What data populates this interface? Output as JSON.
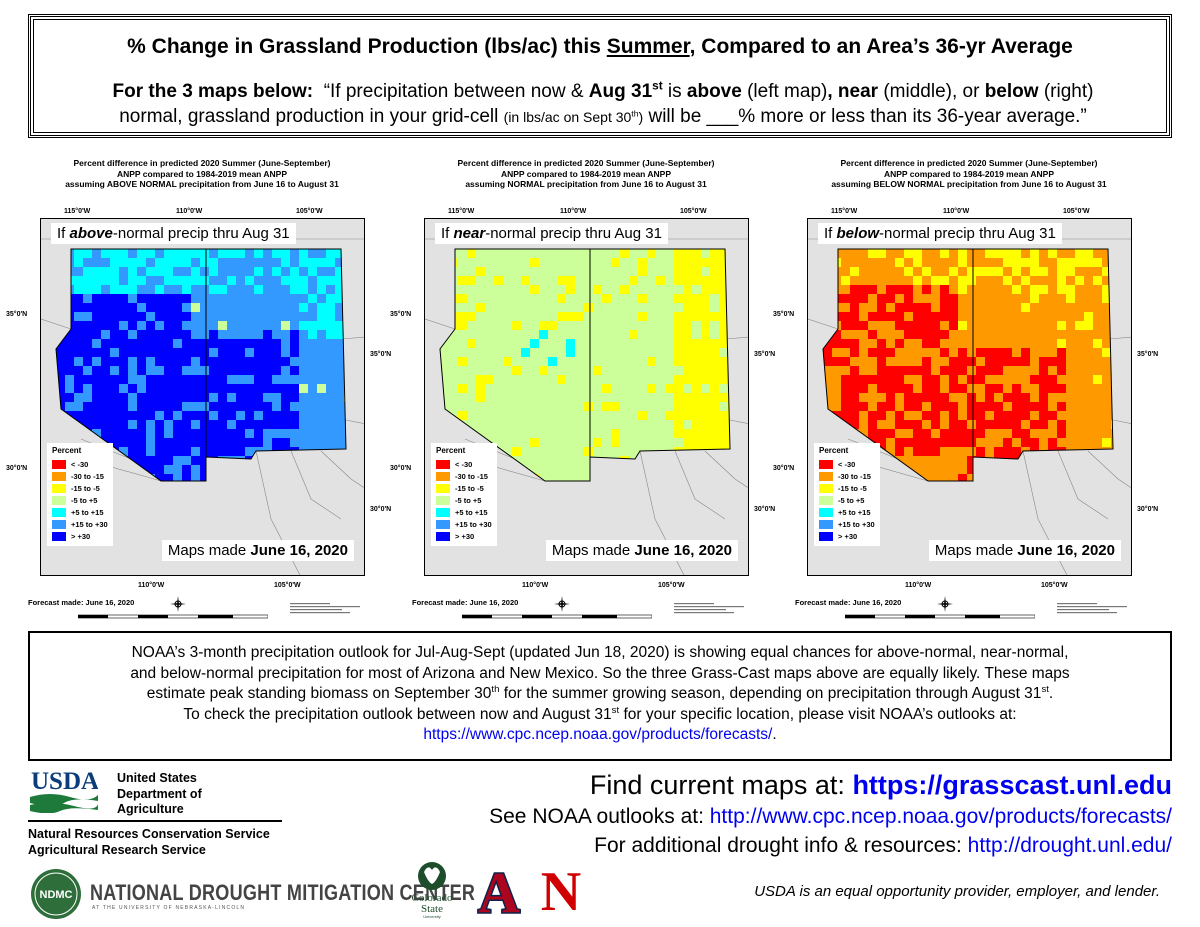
{
  "header": {
    "title_pre": "% Change in Grassland Production (lbs/ac) this ",
    "title_season": "Summer",
    "title_post": ", Compared to an Area’s 36-yr Average",
    "sub_lead": "For the 3 maps below:",
    "sub_q1": "“If precipitation between now & ",
    "sub_aug": "Aug 31",
    "sub_st": "st",
    "sub_is": " is ",
    "sub_above": "above",
    "sub_left": " (left map)",
    "sub_comma1": ", ",
    "sub_near": "near",
    "sub_middle": " (middle), or ",
    "sub_below": "below",
    "sub_right": " (right)",
    "sub_line2a": "normal, grassland production in your grid-cell ",
    "sub_small": "(in lbs/ac on Sept 30",
    "sub_small_th": "th",
    "sub_small_close": ")",
    "sub_line2b": " will be ___% more or less than its 36-year average.”"
  },
  "maps": [
    {
      "title_l1": "Percent difference in predicted 2020 Summer (June-September)",
      "title_l2": "ANPP compared to 1984-2019 mean ANPP",
      "title_l3": "assuming ABOVE NORMAL precipitation from June 16 to August 31",
      "caption_pre": "If ",
      "caption_em": "above",
      "caption_post": "-normal precip thru Aug 31",
      "made_pre": "Maps made ",
      "made_date": "June 16, 2020",
      "forecast": "Forecast made: June 16, 2020"
    },
    {
      "title_l1": "Percent difference in predicted 2020 Summer (June-September)",
      "title_l2": "ANPP compared to 1984-2019 mean ANPP",
      "title_l3": "assuming NORMAL precipitation from June 16 to August 31",
      "caption_pre": "If ",
      "caption_em": "near",
      "caption_post": "-normal precip thru Aug 31",
      "made_pre": "Maps made ",
      "made_date": "June 16, 2020",
      "forecast": "Forecast made: June 16, 2020"
    },
    {
      "title_l1": "Percent difference in predicted 2020 Summer (June-September)",
      "title_l2": "ANPP compared to 1984-2019 mean ANPP",
      "title_l3": "assuming BELOW NORMAL precipitation from June 16 to August 31",
      "caption_pre": "If ",
      "caption_em": "below",
      "caption_post": "-normal precip thru Aug 31",
      "made_pre": "Maps made ",
      "made_date": "June 16, 2020",
      "forecast": "Forecast made: June 16, 2020"
    }
  ],
  "axes": {
    "lon_top": [
      "115°0'W",
      "110°0'W",
      "105°0'W"
    ],
    "lon_bottom": [
      "110°0'W",
      "105°0'W"
    ],
    "lat_left": [
      "35°0'N",
      "30°0'N"
    ],
    "lat_right": [
      "35°0'N",
      "30°0'N"
    ]
  },
  "legend": {
    "title": "Percent",
    "items": [
      {
        "label": "< -30",
        "color": "#ff0000"
      },
      {
        "label": "-30 to -15",
        "color": "#ff9900"
      },
      {
        "label": "-15 to -5",
        "color": "#ffff00"
      },
      {
        "label": "-5 to +5",
        "color": "#ccff99"
      },
      {
        "label": "+5 to +15",
        "color": "#00ffff"
      },
      {
        "label": "+15 to +30",
        "color": "#3399ff"
      },
      {
        "label": "> +30",
        "color": "#0000ff"
      }
    ]
  },
  "notice": {
    "line1": "NOAA’s 3-month precipitation outlook for Jul-Aug-Sept (updated Jun 18, 2020) is showing equal chances for above-normal, near-normal,",
    "line2": "and below-normal precipitation for most of Arizona and New Mexico. So the three Grass-Cast maps above are equally likely. These maps",
    "line3a": "estimate peak standing biomass on September 30",
    "line3_th": "th",
    "line3b": " for the summer growing season, depending on precipitation through August 31",
    "line3_st": "st",
    "line3c": ".",
    "line4a": "To check the precipitation outlook between now and August 31",
    "line4_st": "st",
    "line4b": " for your specific location, please visit NOAA’s outlooks at:",
    "link": "https://www.cpc.ncep.noaa.gov/products/forecasts/",
    "link_end": "."
  },
  "footer": {
    "usda_logo_text": "USDA",
    "usda_l1": "United States",
    "usda_l2": "Department of",
    "usda_l3": "Agriculture",
    "agency1": "Natural Resources Conservation Service",
    "agency2": "Agricultural Research Service",
    "find_pre": "Find current maps at: ",
    "find_url": "https://grasscast.unl.edu",
    "noaa_pre": "See NOAA outlooks at: ",
    "noaa_url": "http://www.cpc.ncep.noaa.gov/products/forecasts/",
    "drought_pre": "For additional drought info & resources:  ",
    "drought_url": "http://drought.unl.edu/",
    "ndmc_badge": "NDMC",
    "ndmc_name": "NATIONAL DROUGHT MITIGATION CENTER",
    "ndmc_sub": "AT THE UNIVERSITY OF NEBRASKA-LINCOLN",
    "csu_l1": "Colorado",
    "csu_l2": "State",
    "csu_l3": "University",
    "ua_letter": "A",
    "neb_letter": "N",
    "eeo": "USDA is an equal opportunity provider, employer, and lender."
  }
}
